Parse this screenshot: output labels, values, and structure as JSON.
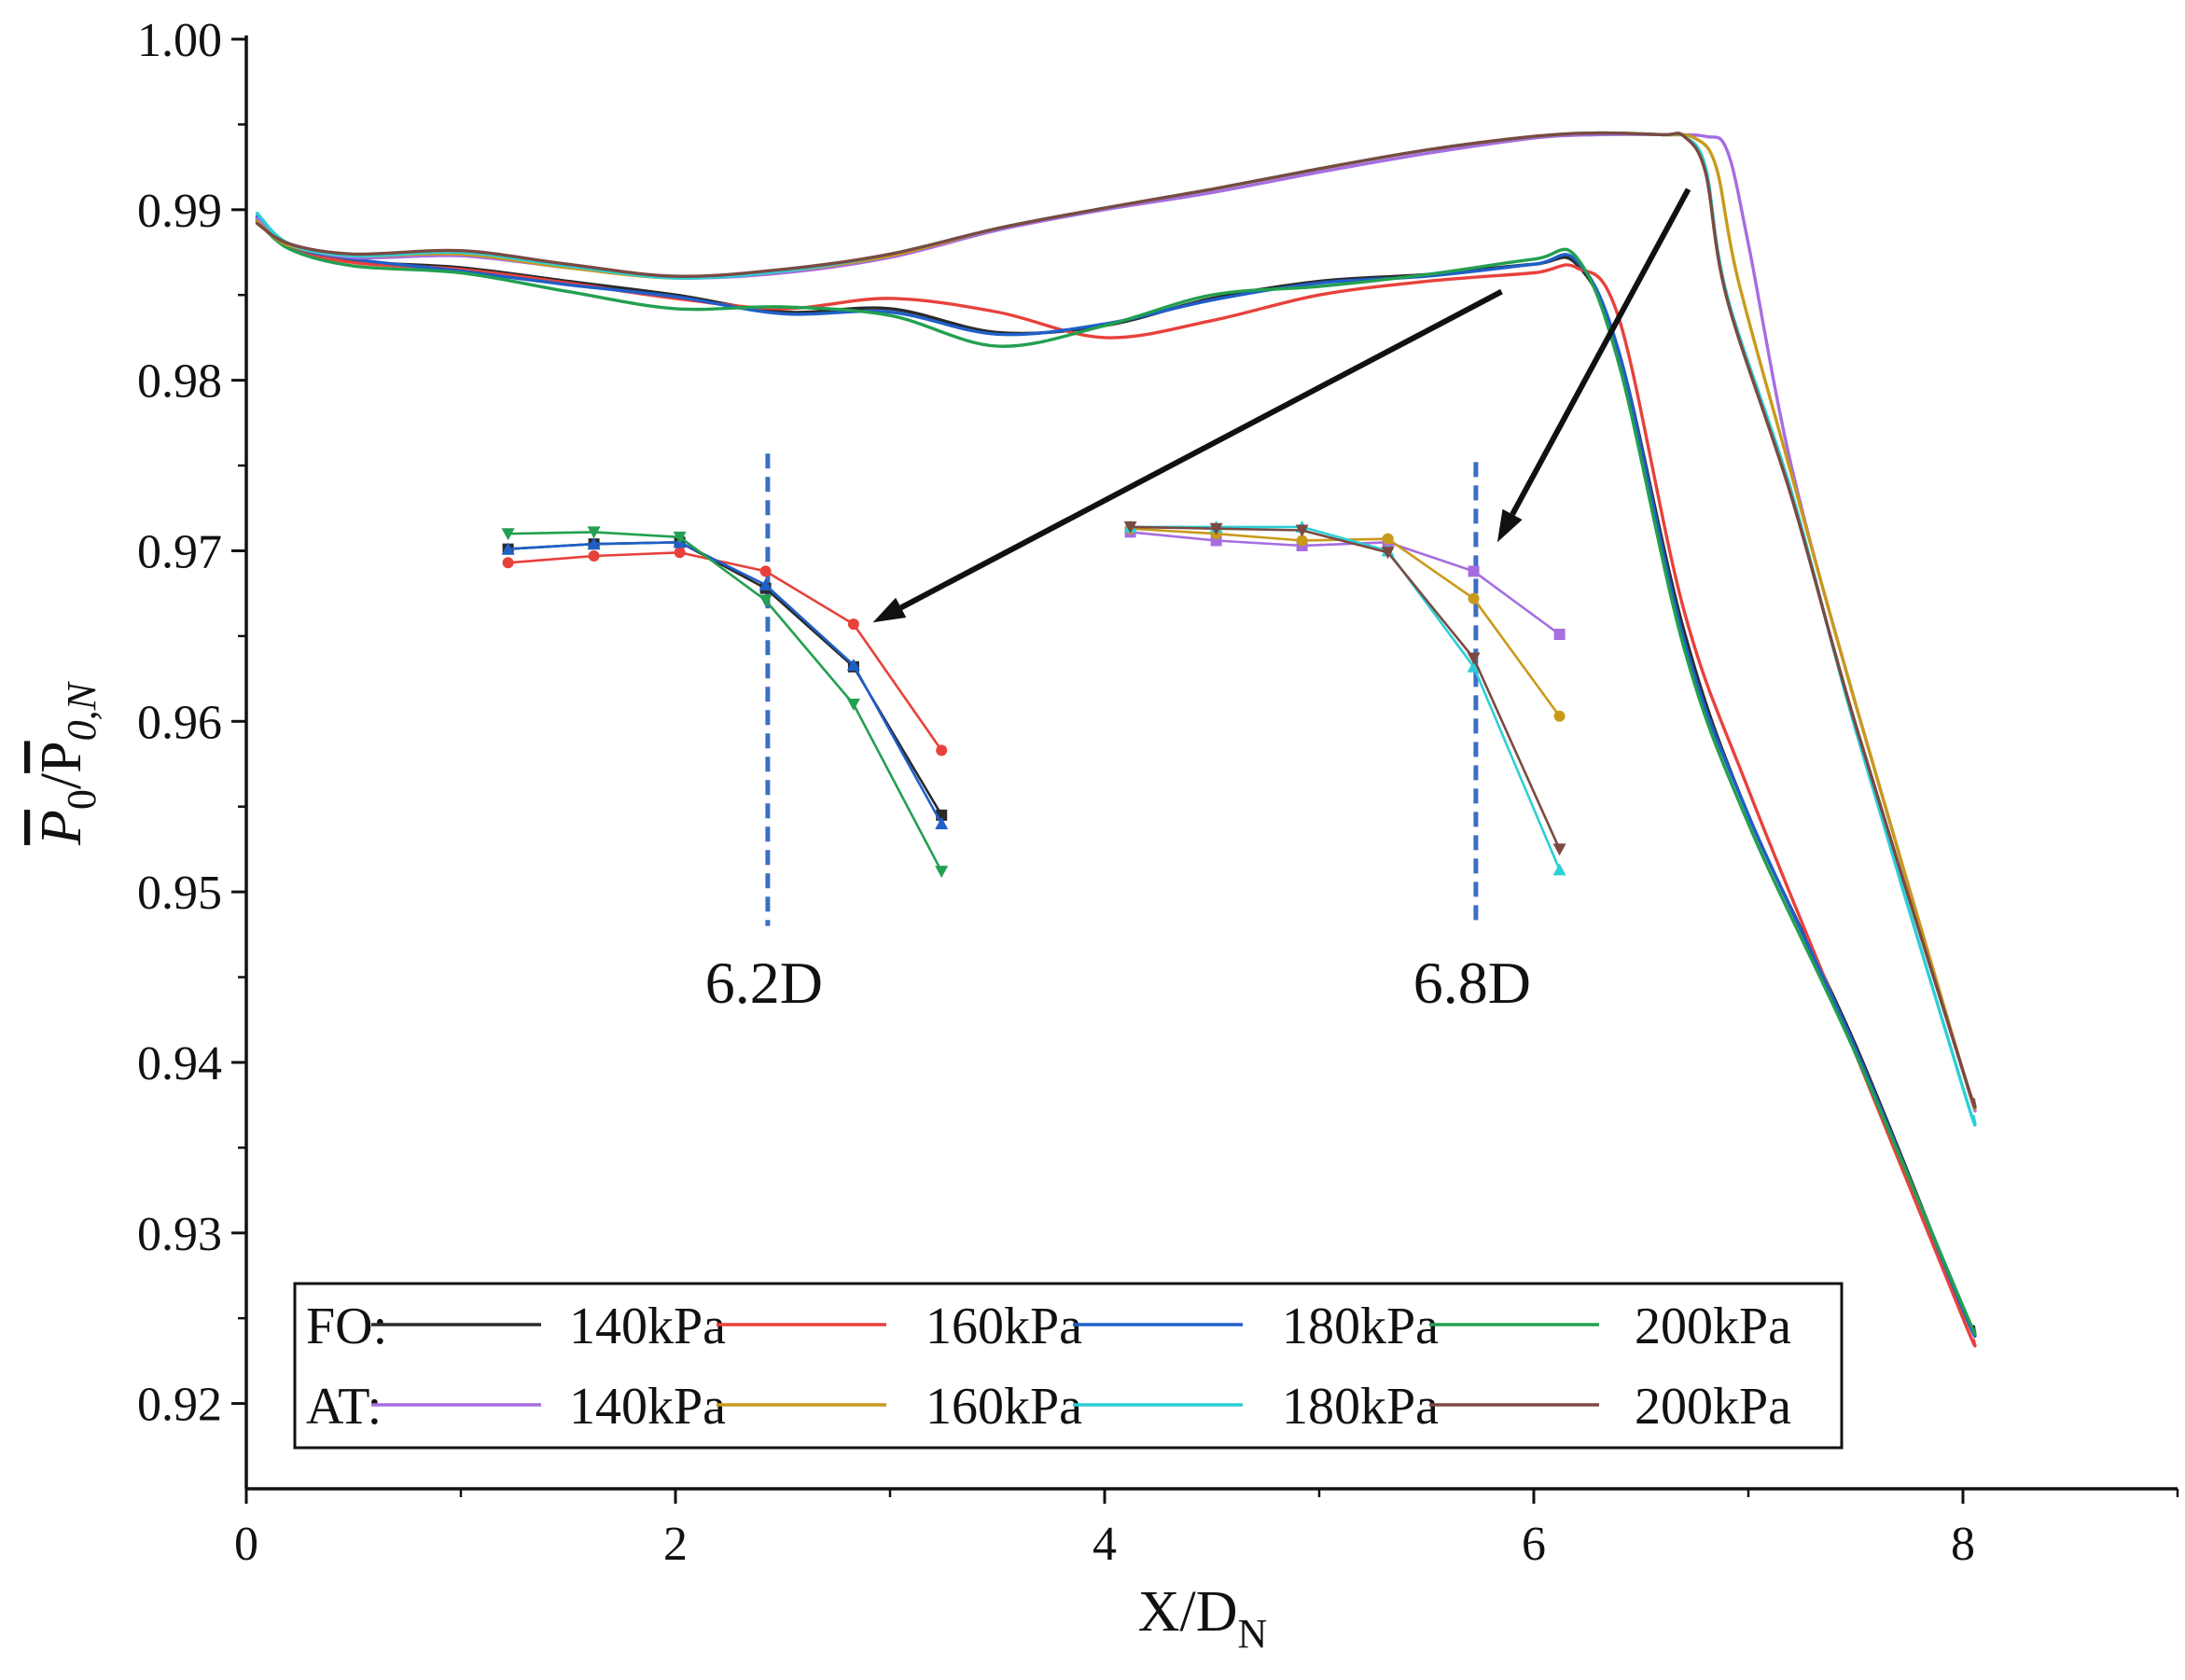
{
  "chart_data": {
    "type": "line",
    "xlabel": {
      "main": "X/D",
      "sub": "N"
    },
    "ylabel": {
      "num_main": "P",
      "num_sub": "0",
      "den_main": "P",
      "den_sub": "0,N"
    },
    "xlim": [
      0,
      9
    ],
    "ylim": [
      0.915,
      1.0
    ],
    "xticks": [
      0,
      2,
      4,
      6,
      8
    ],
    "xtick_labels": [
      "0",
      "2",
      "4",
      "6",
      "8"
    ],
    "yticks": [
      0.92,
      0.93,
      0.94,
      0.95,
      0.96,
      0.97,
      0.98,
      0.99,
      1.0
    ],
    "ytick_labels": [
      "0.92",
      "0.93",
      "0.94",
      "0.95",
      "0.96",
      "0.97",
      "0.98",
      "0.99",
      "1.00"
    ],
    "series": [
      {
        "group": "FO",
        "name": "140kPa",
        "color": "#2a2a2a",
        "x": [
          0.05,
          0.2,
          0.5,
          1.0,
          1.5,
          2.0,
          2.5,
          3.0,
          3.5,
          4.0,
          4.5,
          5.0,
          5.5,
          6.0,
          6.2,
          6.4,
          6.7,
          7.0,
          7.5,
          8.0,
          8.05
        ],
        "y": [
          0.9895,
          0.988,
          0.987,
          0.9866,
          0.9858,
          0.985,
          0.984,
          0.9842,
          0.9828,
          0.9832,
          0.9848,
          0.9858,
          0.9862,
          0.9868,
          0.9868,
          0.9815,
          0.9653,
          0.9545,
          0.941,
          0.9255,
          0.9245
        ]
      },
      {
        "group": "FO",
        "name": "160kPa",
        "color": "#e8413c",
        "x": [
          0.05,
          0.2,
          0.5,
          1.0,
          1.5,
          2.0,
          2.5,
          3.0,
          3.5,
          4.0,
          4.5,
          5.0,
          5.5,
          6.0,
          6.2,
          6.4,
          6.7,
          7.0,
          7.5,
          8.0,
          8.05
        ],
        "y": [
          0.9893,
          0.9878,
          0.9869,
          0.9865,
          0.9857,
          0.9848,
          0.9842,
          0.9848,
          0.984,
          0.9825,
          0.9835,
          0.985,
          0.9858,
          0.9863,
          0.9866,
          0.9835,
          0.9665,
          0.956,
          0.9405,
          0.925,
          0.9237
        ]
      },
      {
        "group": "FO",
        "name": "180kPa",
        "color": "#1f5fc8",
        "x": [
          0.05,
          0.2,
          0.5,
          1.0,
          1.5,
          2.0,
          2.5,
          3.0,
          3.5,
          4.0,
          4.5,
          5.0,
          5.5,
          6.0,
          6.2,
          6.4,
          6.7,
          7.0,
          7.5,
          8.0,
          8.05
        ],
        "y": [
          0.9896,
          0.9879,
          0.9871,
          0.9864,
          0.9856,
          0.9849,
          0.9839,
          0.984,
          0.9827,
          0.9833,
          0.9847,
          0.9857,
          0.9861,
          0.9868,
          0.987,
          0.9815,
          0.9648,
          0.9545,
          0.9408,
          0.9255,
          0.9243
        ]
      },
      {
        "group": "FO",
        "name": "200kPa",
        "color": "#23a050",
        "x": [
          0.05,
          0.2,
          0.5,
          1.0,
          1.5,
          2.0,
          2.5,
          3.0,
          3.5,
          4.0,
          4.5,
          5.0,
          5.5,
          6.0,
          6.2,
          6.4,
          6.7,
          7.0,
          7.5,
          8.0,
          8.05
        ],
        "y": [
          0.9894,
          0.9877,
          0.9867,
          0.9863,
          0.9852,
          0.9842,
          0.9843,
          0.9838,
          0.982,
          0.9832,
          0.985,
          0.9855,
          0.9862,
          0.9871,
          0.9872,
          0.9808,
          0.9643,
          0.954,
          0.9405,
          0.9257,
          0.9243
        ]
      },
      {
        "group": "AT",
        "name": "140kPa",
        "color": "#a66de0",
        "x": [
          0.05,
          0.2,
          0.5,
          1.0,
          1.5,
          2.0,
          2.5,
          3.0,
          3.5,
          4.0,
          4.5,
          5.0,
          5.5,
          6.0,
          6.3,
          6.6,
          6.8,
          6.9,
          7.0,
          7.2,
          7.5,
          8.0,
          8.05
        ],
        "y": [
          0.9895,
          0.988,
          0.9872,
          0.9873,
          0.9866,
          0.986,
          0.9863,
          0.9872,
          0.9888,
          0.99,
          0.991,
          0.9922,
          0.9933,
          0.9942,
          0.9944,
          0.9944,
          0.9943,
          0.9935,
          0.988,
          0.975,
          0.961,
          0.9395,
          0.9375
        ]
      },
      {
        "group": "AT",
        "name": "160kPa",
        "color": "#c99a1a",
        "x": [
          0.05,
          0.2,
          0.5,
          1.0,
          1.5,
          2.0,
          2.5,
          3.0,
          3.5,
          4.0,
          4.5,
          5.0,
          5.5,
          6.0,
          6.3,
          6.6,
          6.75,
          6.85,
          6.95,
          7.2,
          7.5,
          8.0,
          8.05
        ],
        "y": [
          0.9893,
          0.9879,
          0.9873,
          0.9874,
          0.9866,
          0.986,
          0.9864,
          0.9873,
          0.9889,
          0.9901,
          0.9912,
          0.9924,
          0.9935,
          0.9943,
          0.9945,
          0.9944,
          0.9942,
          0.9925,
          0.986,
          0.9745,
          0.961,
          0.9395,
          0.9378
        ]
      },
      {
        "group": "AT",
        "name": "180kPa",
        "color": "#2ccfd6",
        "x": [
          0.05,
          0.2,
          0.5,
          1.0,
          1.5,
          2.0,
          2.5,
          3.0,
          3.5,
          4.0,
          4.5,
          5.0,
          5.5,
          6.0,
          6.3,
          6.6,
          6.7,
          6.8,
          6.9,
          7.2,
          7.5,
          8.0,
          8.05
        ],
        "y": [
          0.9898,
          0.988,
          0.9873,
          0.9875,
          0.9867,
          0.986,
          0.9864,
          0.9874,
          0.9889,
          0.9901,
          0.9912,
          0.9924,
          0.9935,
          0.9943,
          0.9945,
          0.9944,
          0.9943,
          0.9925,
          0.985,
          0.9735,
          0.9595,
          0.9385,
          0.9368
        ]
      },
      {
        "group": "AT",
        "name": "200kPa",
        "color": "#7a4a42",
        "x": [
          0.05,
          0.2,
          0.5,
          1.0,
          1.5,
          2.0,
          2.5,
          3.0,
          3.5,
          4.0,
          4.5,
          5.0,
          5.5,
          6.0,
          6.3,
          6.6,
          6.7,
          6.8,
          6.9,
          7.2,
          7.5,
          8.0,
          8.05
        ],
        "y": [
          0.9892,
          0.988,
          0.9874,
          0.9876,
          0.9868,
          0.9861,
          0.9865,
          0.9874,
          0.9889,
          0.9901,
          0.9912,
          0.9924,
          0.9935,
          0.9943,
          0.9945,
          0.9944,
          0.9943,
          0.9922,
          0.9848,
          0.9732,
          0.9598,
          0.9395,
          0.9378
        ]
      }
    ],
    "insets": [
      {
        "label": "6.2D",
        "dash_x": 2.43,
        "dash_ylim": [
          0.948,
          0.9757
        ],
        "series": [
          {
            "name": "FO 140kPa",
            "color": "#2a2a2a",
            "marker": "square",
            "x": [
              1.22,
              1.62,
              2.02,
              2.42,
              2.83,
              3.24
            ],
            "y": [
              0.9701,
              0.9704,
              0.9705,
              0.9678,
              0.9632,
              0.9545
            ]
          },
          {
            "name": "FO 160kPa",
            "color": "#e8413c",
            "marker": "circle",
            "x": [
              1.22,
              1.62,
              2.02,
              2.42,
              2.83,
              3.24
            ],
            "y": [
              0.9693,
              0.9697,
              0.9699,
              0.9688,
              0.9657,
              0.9583
            ]
          },
          {
            "name": "FO 180kPa",
            "color": "#1f5fc8",
            "marker": "triangle-up",
            "x": [
              1.22,
              1.62,
              2.02,
              2.42,
              2.83,
              3.24
            ],
            "y": [
              0.9701,
              0.9704,
              0.9705,
              0.968,
              0.9633,
              0.954
            ]
          },
          {
            "name": "FO 200kPa",
            "color": "#23a050",
            "marker": "triangle-down",
            "x": [
              1.22,
              1.62,
              2.02,
              2.42,
              2.83,
              3.24
            ],
            "y": [
              0.971,
              0.9711,
              0.9708,
              0.9671,
              0.961,
              0.9512
            ]
          }
        ]
      },
      {
        "label": "6.8D",
        "dash_x": 5.73,
        "dash_ylim": [
          0.948,
          0.9752
        ],
        "series": [
          {
            "name": "AT 140kPa",
            "color": "#a66de0",
            "marker": "square",
            "x": [
              4.12,
              4.52,
              4.92,
              5.32,
              5.72,
              6.12
            ],
            "y": [
              0.9711,
              0.9706,
              0.9703,
              0.9705,
              0.9688,
              0.9651
            ]
          },
          {
            "name": "AT 160kPa",
            "color": "#c99a1a",
            "marker": "circle",
            "x": [
              4.12,
              4.52,
              4.92,
              5.32,
              5.72,
              6.12
            ],
            "y": [
              0.9713,
              0.971,
              0.9706,
              0.9707,
              0.9672,
              0.9603
            ]
          },
          {
            "name": "AT 180kPa",
            "color": "#2ccfd6",
            "marker": "triangle-up",
            "x": [
              4.12,
              4.52,
              4.92,
              5.32,
              5.72,
              6.12
            ],
            "y": [
              0.9714,
              0.9714,
              0.9714,
              0.97,
              0.9632,
              0.9513
            ]
          },
          {
            "name": "AT 200kPa",
            "color": "#7a4a42",
            "marker": "triangle-down",
            "x": [
              4.12,
              4.52,
              4.92,
              5.32,
              5.72,
              6.12
            ],
            "y": [
              0.9714,
              0.9713,
              0.9712,
              0.9699,
              0.9637,
              0.9525
            ]
          }
        ]
      }
    ],
    "arrows": [
      {
        "from": [
          5.85,
          0.9852
        ],
        "to": [
          2.92,
          0.9658
        ]
      },
      {
        "from": [
          6.72,
          0.9912
        ],
        "to": [
          5.83,
          0.9705
        ]
      }
    ],
    "legend": {
      "location": "lower-left",
      "rows": [
        {
          "group_label": "FO:",
          "entries": [
            {
              "label": "140kPa",
              "color": "#2a2a2a"
            },
            {
              "label": "160kPa",
              "color": "#e8413c"
            },
            {
              "label": "180kPa",
              "color": "#1f5fc8"
            },
            {
              "label": "200kPa",
              "color": "#23a050"
            }
          ]
        },
        {
          "group_label": "AT:",
          "entries": [
            {
              "label": "140kPa",
              "color": "#a66de0"
            },
            {
              "label": "160kPa",
              "color": "#c99a1a"
            },
            {
              "label": "180kPa",
              "color": "#2ccfd6"
            },
            {
              "label": "200kPa",
              "color": "#7a4a42"
            }
          ]
        }
      ]
    },
    "colors": {
      "axis": "#111111",
      "dashed_marker_line": "#3b6fc4",
      "arrow": "#111111"
    }
  }
}
